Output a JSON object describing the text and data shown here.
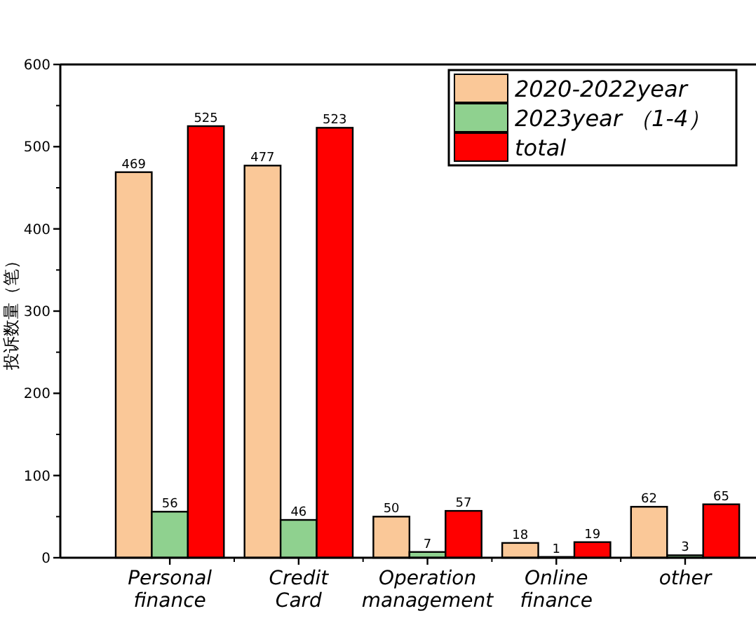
{
  "chart_data": {
    "type": "bar",
    "ylabel": "投诉数量（笔）",
    "categories": [
      "Personal\nfinance",
      "Credit\nCard",
      "Operation\nmanagement",
      "Online\nfinance",
      "other"
    ],
    "series": [
      {
        "name": "2020-2022year",
        "color": "#fac898",
        "values": [
          469,
          477,
          50,
          18,
          62
        ]
      },
      {
        "name": "2023year （1-4）",
        "color": "#8fd18f",
        "values": [
          56,
          46,
          7,
          1,
          3
        ]
      },
      {
        "name": "total",
        "color": "#ff0000",
        "values": [
          525,
          523,
          57,
          19,
          65
        ]
      }
    ],
    "ylim": [
      0,
      600
    ],
    "yticks": [
      0,
      100,
      200,
      300,
      400,
      500,
      600
    ],
    "data_labels": true,
    "legend": "top right",
    "grid": false
  }
}
